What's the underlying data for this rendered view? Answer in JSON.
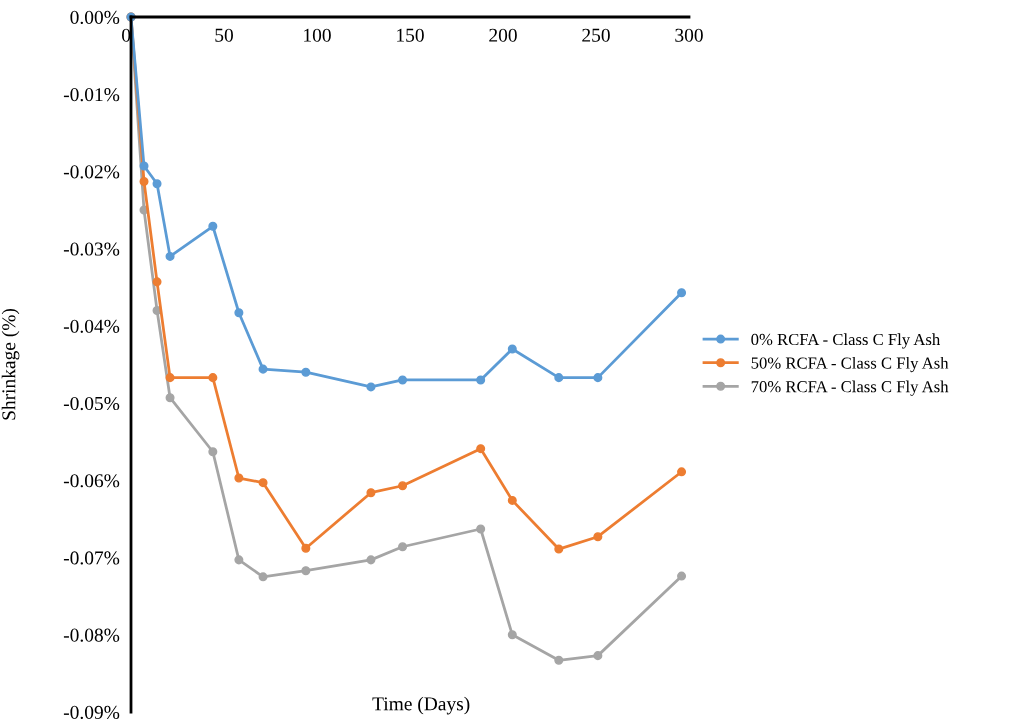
{
  "chart_data": {
    "type": "line",
    "xlabel": "Time (Days)",
    "ylabel": "Shrinkage (%)",
    "x": [
      0,
      7,
      14,
      21,
      44,
      58,
      71,
      94,
      129,
      146,
      188,
      205,
      230,
      251,
      296
    ],
    "series": [
      {
        "name": "0% RCFA - Class C Fly Ash",
        "color": "#5b9bd5",
        "values": [
          0,
          -0.0193,
          -0.0216,
          -0.031,
          -0.0271,
          -0.0383,
          -0.0456,
          -0.046,
          -0.0479,
          -0.047,
          -0.047,
          -0.043,
          -0.0467,
          -0.0467,
          -0.0357
        ]
      },
      {
        "name": "50% RCFA - Class C Fly Ash",
        "color": "#ed7d31",
        "values": [
          0,
          -0.0213,
          -0.0343,
          -0.0467,
          -0.0467,
          -0.0597,
          -0.0603,
          -0.0688,
          -0.0616,
          -0.0607,
          -0.0559,
          -0.0626,
          -0.0689,
          -0.0673,
          -0.0589
        ]
      },
      {
        "name": "70% RCFA - Class C Fly Ash",
        "color": "#a5a5a5",
        "values": [
          0,
          -0.025,
          -0.038,
          -0.0493,
          -0.0563,
          -0.0703,
          -0.0725,
          -0.0717,
          -0.0703,
          -0.0686,
          -0.0663,
          -0.08,
          -0.0833,
          -0.0827,
          -0.0724
        ]
      }
    ],
    "xlim": [
      0,
      300
    ],
    "xticks": [
      0,
      50,
      100,
      150,
      200,
      250,
      300
    ],
    "ylim": [
      -0.09,
      0
    ],
    "yticks": [
      {
        "value": 0,
        "label": "0.00%"
      },
      {
        "value": -0.01,
        "label": "-0.01%"
      },
      {
        "value": -0.02,
        "label": "-0.02%"
      },
      {
        "value": -0.03,
        "label": "-0.03%"
      },
      {
        "value": -0.04,
        "label": "-0.04%"
      },
      {
        "value": -0.05,
        "label": "-0.05%"
      },
      {
        "value": -0.06,
        "label": "-0.06%"
      },
      {
        "value": -0.07,
        "label": "-0.07%"
      },
      {
        "value": -0.08,
        "label": "-0.08%"
      },
      {
        "value": -0.09,
        "label": "-0.09%"
      }
    ],
    "grid": false,
    "legend": "right",
    "marker": "circle",
    "line_style": "solid"
  }
}
